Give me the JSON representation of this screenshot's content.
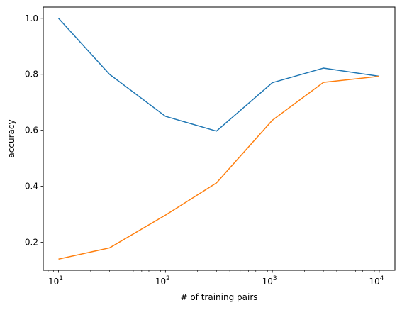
{
  "chart_data": {
    "type": "line",
    "title": "",
    "xlabel": "# of training pairs",
    "ylabel": "accuracy",
    "xscale": "log",
    "xlim": [
      7.2,
      14000
    ],
    "ylim": [
      0.1,
      1.04
    ],
    "grid": false,
    "x": [
      10,
      30,
      100,
      300,
      1000,
      3000,
      10000
    ],
    "series": [
      {
        "color": "#1f77b4",
        "values": [
          1.0,
          0.8,
          0.65,
          0.597,
          0.77,
          0.822,
          0.793
        ]
      },
      {
        "color": "#ff7f0e",
        "values": [
          0.14,
          0.18,
          0.297,
          0.412,
          0.636,
          0.771,
          0.793
        ]
      }
    ],
    "xticks": [
      {
        "value": 10,
        "base": "10",
        "exp": "1"
      },
      {
        "value": 100,
        "base": "10",
        "exp": "2"
      },
      {
        "value": 1000,
        "base": "10",
        "exp": "3"
      },
      {
        "value": 10000,
        "base": "10",
        "exp": "4"
      }
    ],
    "yticks": [
      {
        "value": 0.2,
        "label": "0.2"
      },
      {
        "value": 0.4,
        "label": "0.4"
      },
      {
        "value": 0.6,
        "label": "0.6"
      },
      {
        "value": 0.8,
        "label": "0.8"
      },
      {
        "value": 1.0,
        "label": "1.0"
      }
    ]
  }
}
